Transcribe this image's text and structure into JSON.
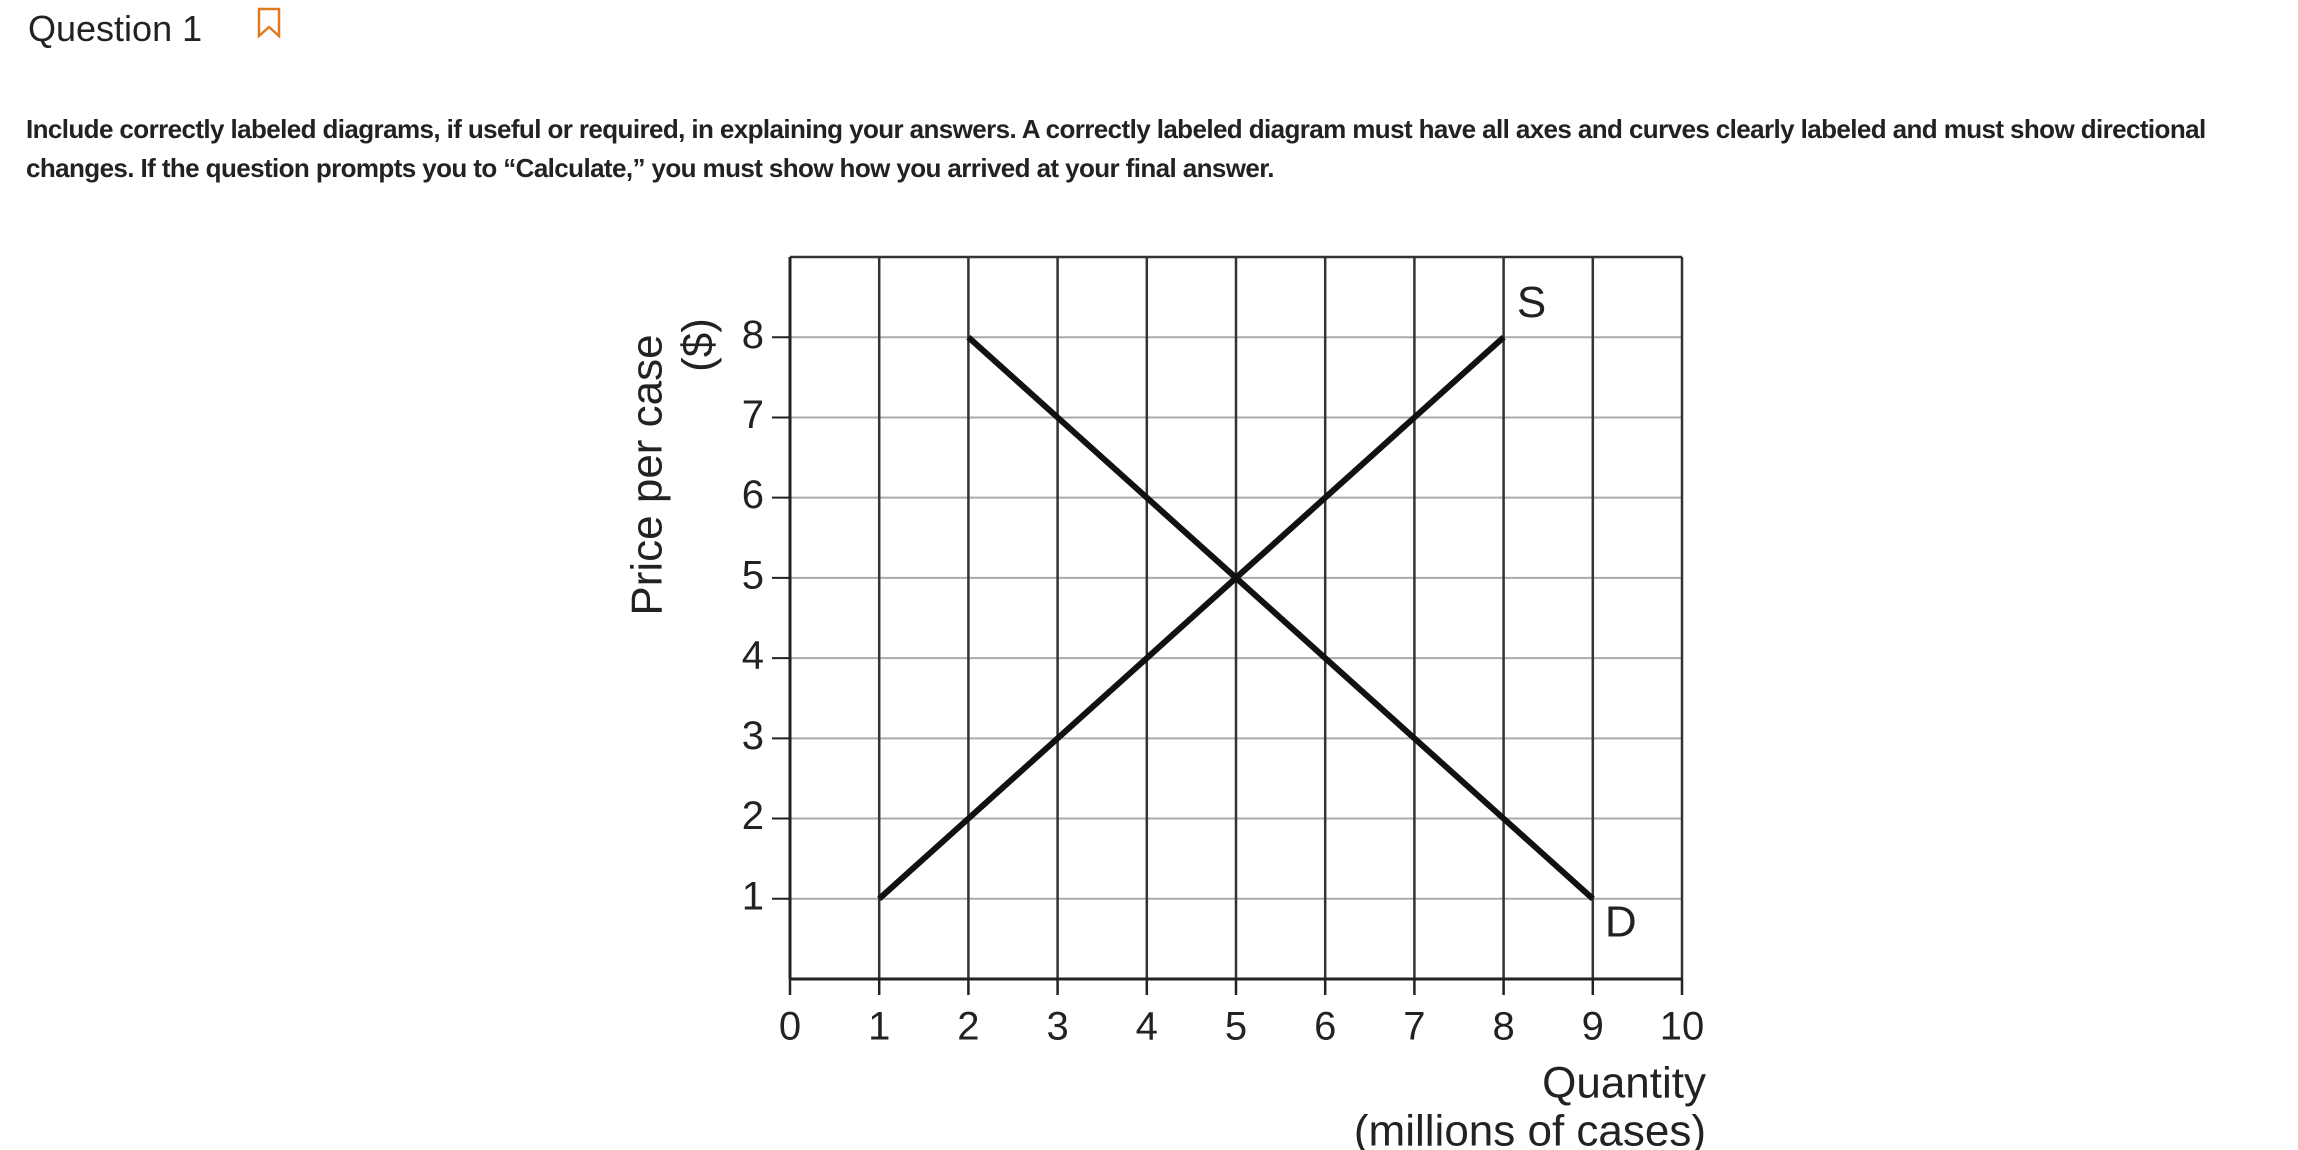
{
  "header": {
    "title": "Question 1"
  },
  "instructions": "Include correctly labeled diagrams, if useful or required, in explaining your answers. A correctly labeled diagram must have all axes and curves clearly labeled and must show directional changes. If the question prompts you to “Calculate,” you must show how you arrived at your final answer.",
  "chart_data": {
    "type": "line",
    "x_label": [
      "Quantity",
      "(millions of cases)"
    ],
    "y_label": [
      "Price per case",
      "($)"
    ],
    "xlim": [
      0,
      10
    ],
    "ylim": [
      0,
      9
    ],
    "xticks": [
      0,
      1,
      2,
      3,
      4,
      5,
      6,
      7,
      8,
      9,
      10
    ],
    "yticks": [
      1,
      2,
      3,
      4,
      5,
      6,
      7,
      8
    ],
    "grid": true,
    "series": [
      {
        "name": "S",
        "color": "#111111",
        "x": [
          1,
          2,
          3,
          4,
          5,
          6,
          7,
          8
        ],
        "values": [
          1,
          2,
          3,
          4,
          5,
          6,
          7,
          8
        ]
      },
      {
        "name": "D",
        "color": "#111111",
        "x": [
          2,
          3,
          4,
          5,
          6,
          7,
          8,
          9
        ],
        "values": [
          8,
          7,
          6,
          5,
          4,
          3,
          2,
          1
        ]
      }
    ]
  }
}
